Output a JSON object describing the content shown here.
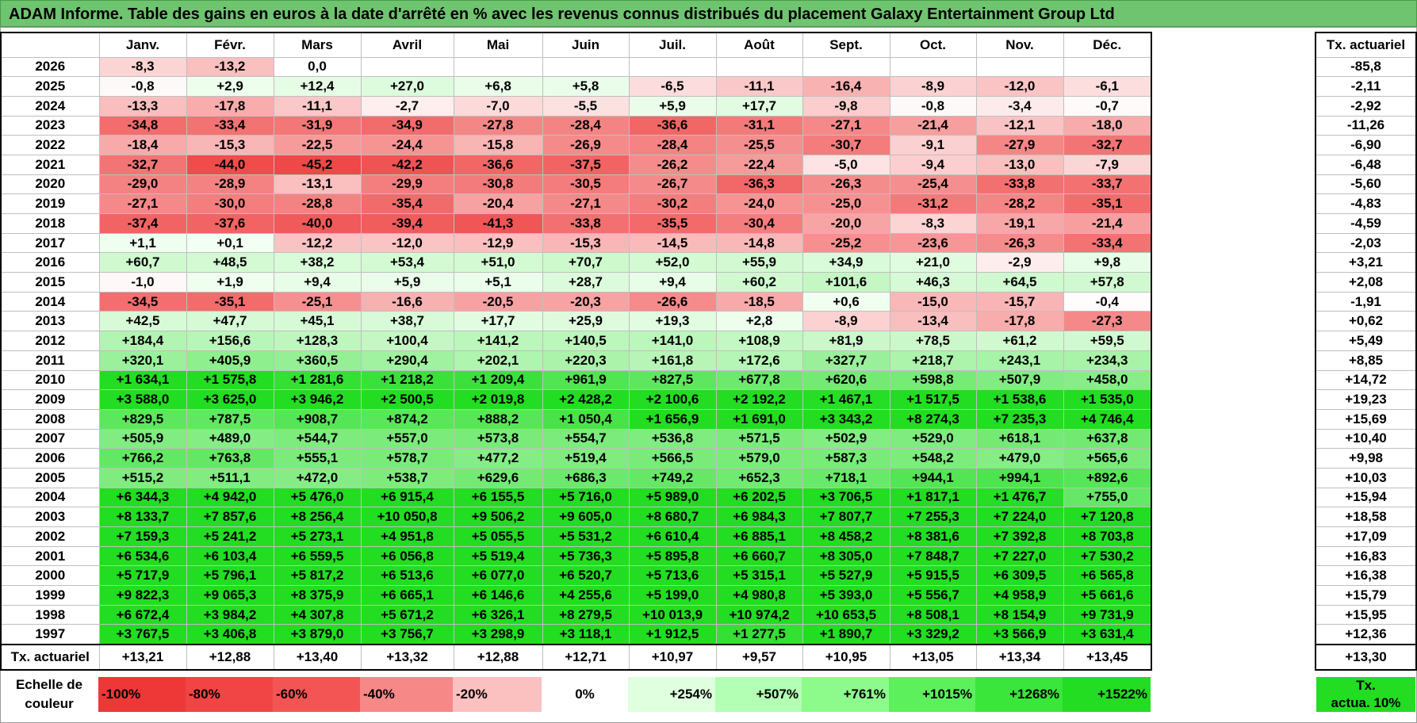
{
  "title": "ADAM Informe. Table des gains en euros à la date d'arrêté en % avec les revenus connus distribués du placement Galaxy Entertainment Group Ltd",
  "months": [
    "Janv.",
    "Févr.",
    "Mars",
    "Avril",
    "Mai",
    "Juin",
    "Juil.",
    "Août",
    "Sept.",
    "Oct.",
    "Nov.",
    "Déc."
  ],
  "actuarial_header": "Tx. actuariel",
  "rows": [
    {
      "year": "2026",
      "cells": [
        "-8,3",
        "-13,2",
        "0,0",
        "",
        "",
        "",
        "",
        "",
        "",
        "",
        "",
        ""
      ],
      "act": "-85,8"
    },
    {
      "year": "2025",
      "cells": [
        "-0,8",
        "+2,9",
        "+12,4",
        "+27,0",
        "+6,8",
        "+5,8",
        "-6,5",
        "-11,1",
        "-16,4",
        "-8,9",
        "-12,0",
        "-6,1"
      ],
      "act": "-2,11"
    },
    {
      "year": "2024",
      "cells": [
        "-13,3",
        "-17,8",
        "-11,1",
        "-2,7",
        "-7,0",
        "-5,5",
        "+5,9",
        "+17,7",
        "-9,8",
        "-0,8",
        "-3,4",
        "-0,7"
      ],
      "act": "-2,92"
    },
    {
      "year": "2023",
      "cells": [
        "-34,8",
        "-33,4",
        "-31,9",
        "-34,9",
        "-27,8",
        "-28,4",
        "-36,6",
        "-31,1",
        "-27,1",
        "-21,4",
        "-12,1",
        "-18,0"
      ],
      "act": "-11,26"
    },
    {
      "year": "2022",
      "cells": [
        "-18,4",
        "-15,3",
        "-22,5",
        "-24,4",
        "-15,8",
        "-26,9",
        "-28,4",
        "-25,5",
        "-30,7",
        "-9,1",
        "-27,9",
        "-32,7"
      ],
      "act": "-6,90"
    },
    {
      "year": "2021",
      "cells": [
        "-32,7",
        "-44,0",
        "-45,2",
        "-42,2",
        "-36,6",
        "-37,5",
        "-26,2",
        "-22,4",
        "-5,0",
        "-9,4",
        "-13,0",
        "-7,9"
      ],
      "act": "-6,48"
    },
    {
      "year": "2020",
      "cells": [
        "-29,0",
        "-28,9",
        "-13,1",
        "-29,9",
        "-30,8",
        "-30,5",
        "-26,7",
        "-36,3",
        "-26,3",
        "-25,4",
        "-33,8",
        "-33,7"
      ],
      "act": "-5,60"
    },
    {
      "year": "2019",
      "cells": [
        "-27,1",
        "-30,0",
        "-28,8",
        "-35,4",
        "-20,4",
        "-27,1",
        "-30,2",
        "-24,0",
        "-25,0",
        "-31,2",
        "-28,2",
        "-35,1"
      ],
      "act": "-4,83"
    },
    {
      "year": "2018",
      "cells": [
        "-37,4",
        "-37,6",
        "-40,0",
        "-39,4",
        "-41,3",
        "-33,8",
        "-35,5",
        "-30,4",
        "-20,0",
        "-8,3",
        "-19,1",
        "-21,4"
      ],
      "act": "-4,59"
    },
    {
      "year": "2017",
      "cells": [
        "+1,1",
        "+0,1",
        "-12,2",
        "-12,0",
        "-12,9",
        "-15,3",
        "-14,5",
        "-14,8",
        "-25,2",
        "-23,6",
        "-26,3",
        "-33,4"
      ],
      "act": "-2,03"
    },
    {
      "year": "2016",
      "cells": [
        "+60,7",
        "+48,5",
        "+38,2",
        "+53,4",
        "+51,0",
        "+70,7",
        "+52,0",
        "+55,9",
        "+34,9",
        "+21,0",
        "-2,9",
        "+9,8"
      ],
      "act": "+3,21"
    },
    {
      "year": "2015",
      "cells": [
        "-1,0",
        "+1,9",
        "+9,4",
        "+5,9",
        "+5,1",
        "+28,7",
        "+9,4",
        "+60,2",
        "+101,6",
        "+46,3",
        "+64,5",
        "+57,8"
      ],
      "act": "+2,08"
    },
    {
      "year": "2014",
      "cells": [
        "-34,5",
        "-35,1",
        "-25,1",
        "-16,6",
        "-20,5",
        "-20,3",
        "-26,6",
        "-18,5",
        "+0,6",
        "-15,0",
        "-15,7",
        "-0,4"
      ],
      "act": "-1,91"
    },
    {
      "year": "2013",
      "cells": [
        "+42,5",
        "+47,7",
        "+45,1",
        "+38,7",
        "+17,7",
        "+25,9",
        "+19,3",
        "+2,8",
        "-8,9",
        "-13,4",
        "-17,8",
        "-27,3"
      ],
      "act": "+0,62"
    },
    {
      "year": "2012",
      "cells": [
        "+184,4",
        "+156,6",
        "+128,3",
        "+100,4",
        "+141,2",
        "+140,5",
        "+141,0",
        "+108,9",
        "+81,9",
        "+78,5",
        "+61,2",
        "+59,5"
      ],
      "act": "+5,49"
    },
    {
      "year": "2011",
      "cells": [
        "+320,1",
        "+405,9",
        "+360,5",
        "+290,4",
        "+202,1",
        "+220,3",
        "+161,8",
        "+172,6",
        "+327,7",
        "+218,7",
        "+243,1",
        "+234,3"
      ],
      "act": "+8,85"
    },
    {
      "year": "2010",
      "cells": [
        "+1 634,1",
        "+1 575,8",
        "+1 281,6",
        "+1 218,2",
        "+1 209,4",
        "+961,9",
        "+827,5",
        "+677,8",
        "+620,6",
        "+598,8",
        "+507,9",
        "+458,0"
      ],
      "act": "+14,72"
    },
    {
      "year": "2009",
      "cells": [
        "+3 588,0",
        "+3 625,0",
        "+3 946,2",
        "+2 500,5",
        "+2 019,8",
        "+2 428,2",
        "+2 100,6",
        "+2 192,2",
        "+1 467,1",
        "+1 517,5",
        "+1 538,6",
        "+1 535,0"
      ],
      "act": "+19,23"
    },
    {
      "year": "2008",
      "cells": [
        "+829,5",
        "+787,5",
        "+908,7",
        "+874,2",
        "+888,2",
        "+1 050,4",
        "+1 656,9",
        "+1 691,0",
        "+3 343,2",
        "+8 274,3",
        "+7 235,3",
        "+4 746,4"
      ],
      "act": "+15,69"
    },
    {
      "year": "2007",
      "cells": [
        "+505,9",
        "+489,0",
        "+544,7",
        "+557,0",
        "+573,8",
        "+554,7",
        "+536,8",
        "+571,5",
        "+502,9",
        "+529,0",
        "+618,1",
        "+637,8"
      ],
      "act": "+10,40"
    },
    {
      "year": "2006",
      "cells": [
        "+766,2",
        "+763,8",
        "+555,1",
        "+578,7",
        "+477,2",
        "+519,4",
        "+566,5",
        "+579,0",
        "+587,3",
        "+548,2",
        "+479,0",
        "+565,6"
      ],
      "act": "+9,98"
    },
    {
      "year": "2005",
      "cells": [
        "+515,2",
        "+511,1",
        "+472,0",
        "+538,7",
        "+629,6",
        "+686,3",
        "+749,2",
        "+652,3",
        "+718,1",
        "+944,1",
        "+994,1",
        "+892,6"
      ],
      "act": "+10,03"
    },
    {
      "year": "2004",
      "cells": [
        "+6 344,3",
        "+4 942,0",
        "+5 476,0",
        "+6 915,4",
        "+6 155,5",
        "+5 716,0",
        "+5 989,0",
        "+6 202,5",
        "+3 706,5",
        "+1 817,1",
        "+1 476,7",
        "+755,0"
      ],
      "act": "+15,94"
    },
    {
      "year": "2003",
      "cells": [
        "+8 133,7",
        "+7 857,6",
        "+8 256,4",
        "+10 050,8",
        "+9 506,2",
        "+9 605,0",
        "+8 680,7",
        "+6 984,3",
        "+7 807,7",
        "+7 255,3",
        "+7 224,0",
        "+7 120,8"
      ],
      "act": "+18,58"
    },
    {
      "year": "2002",
      "cells": [
        "+7 159,3",
        "+5 241,2",
        "+5 273,1",
        "+4 951,8",
        "+5 055,5",
        "+5 531,2",
        "+6 610,4",
        "+6 885,1",
        "+8 458,2",
        "+8 381,6",
        "+7 392,8",
        "+8 703,8"
      ],
      "act": "+17,09"
    },
    {
      "year": "2001",
      "cells": [
        "+6 534,6",
        "+6 103,4",
        "+6 559,5",
        "+6 056,8",
        "+5 519,4",
        "+5 736,3",
        "+5 895,8",
        "+6 660,7",
        "+8 305,0",
        "+7 848,7",
        "+7 227,0",
        "+7 530,2"
      ],
      "act": "+16,83"
    },
    {
      "year": "2000",
      "cells": [
        "+5 717,9",
        "+5 796,1",
        "+5 817,2",
        "+6 513,6",
        "+6 077,0",
        "+6 520,7",
        "+5 713,6",
        "+5 315,1",
        "+5 527,9",
        "+5 915,5",
        "+6 309,5",
        "+6 565,8"
      ],
      "act": "+16,38"
    },
    {
      "year": "1999",
      "cells": [
        "+9 822,3",
        "+9 065,3",
        "+8 375,9",
        "+6 665,1",
        "+6 146,6",
        "+4 255,6",
        "+5 199,0",
        "+4 980,8",
        "+5 393,0",
        "+5 556,7",
        "+4 958,9",
        "+5 661,6"
      ],
      "act": "+15,79"
    },
    {
      "year": "1998",
      "cells": [
        "+6 672,4",
        "+3 984,2",
        "+4 307,8",
        "+5 671,2",
        "+6 326,1",
        "+8 279,5",
        "+10 013,9",
        "+10 974,2",
        "+10 653,5",
        "+8 508,1",
        "+8 154,9",
        "+9 731,9"
      ],
      "act": "+15,95"
    },
    {
      "year": "1997",
      "cells": [
        "+3 767,5",
        "+3 406,8",
        "+3 879,0",
        "+3 756,7",
        "+3 298,9",
        "+3 118,1",
        "+1 912,5",
        "+1 277,5",
        "+1 890,7",
        "+3 329,2",
        "+3 566,9",
        "+3 631,4"
      ],
      "act": "+12,36"
    }
  ],
  "footer": {
    "label": "Tx. actuariel",
    "cells": [
      "+13,21",
      "+12,88",
      "+13,40",
      "+13,32",
      "+12,88",
      "+12,71",
      "+10,97",
      "+9,57",
      "+10,95",
      "+13,05",
      "+13,34",
      "+13,45"
    ],
    "act": "+13,30"
  },
  "scale": {
    "label_line1": "Echelle de",
    "label_line2": "couleur",
    "steps": [
      "-100%",
      "-80%",
      "-60%",
      "-40%",
      "-20%",
      "0%",
      "+254%",
      "+507%",
      "+761%",
      "+1015%",
      "+1268%",
      "+1522%"
    ],
    "step_colors": [
      "#ee3838",
      "#f14444",
      "#f35555",
      "#f78888",
      "#fbc0c0",
      "#ffffff",
      "#dfffdf",
      "#b3ffb3",
      "#8cfb8c",
      "#5cf05c",
      "#39e639",
      "#22dd22"
    ],
    "act_line1": "Tx.",
    "act_line2": "actua. 10%",
    "act_color": "#22dd22"
  },
  "colors": {
    "title_bg": "#6fc46f",
    "neg_max": "#ee3838",
    "pos_max": "#22dd22"
  }
}
